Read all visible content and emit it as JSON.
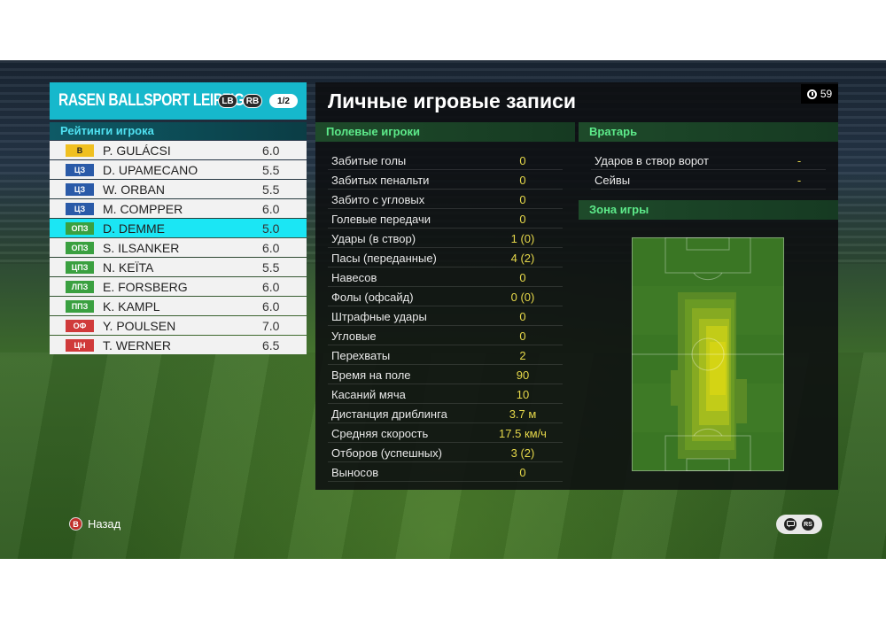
{
  "team": {
    "name": "RASEN BALLSPORT LEIPZIG",
    "lb_label": "LB",
    "rb_label": "RB",
    "page": "1/2"
  },
  "ratings_title": "Рейтинги игрока",
  "players": [
    {
      "pos": "В",
      "name": "P. GULÁCSI",
      "rating": "6.0",
      "pos_bg": "#f0c020",
      "pos_fg": "#222222"
    },
    {
      "pos": "ЦЗ",
      "name": "D. UPAMECANO",
      "rating": "5.5",
      "pos_bg": "#2a5aa8",
      "pos_fg": "#ffffff"
    },
    {
      "pos": "ЦЗ",
      "name": "W. ORBAN",
      "rating": "5.5",
      "pos_bg": "#2a5aa8",
      "pos_fg": "#ffffff"
    },
    {
      "pos": "ЦЗ",
      "name": "M. COMPPER",
      "rating": "6.0",
      "pos_bg": "#2a5aa8",
      "pos_fg": "#ffffff"
    },
    {
      "pos": "ОПЗ",
      "name": "D. DEMME",
      "rating": "5.0",
      "pos_bg": "#3aa040",
      "pos_fg": "#ffffff"
    },
    {
      "pos": "ОПЗ",
      "name": "S. ILSANKER",
      "rating": "6.0",
      "pos_bg": "#3aa040",
      "pos_fg": "#ffffff"
    },
    {
      "pos": "ЦПЗ",
      "name": "N. KEÏTA",
      "rating": "5.5",
      "pos_bg": "#3aa040",
      "pos_fg": "#ffffff"
    },
    {
      "pos": "ЛПЗ",
      "name": "E. FORSBERG",
      "rating": "6.0",
      "pos_bg": "#3aa040",
      "pos_fg": "#ffffff"
    },
    {
      "pos": "ППЗ",
      "name": "K. KAMPL",
      "rating": "6.0",
      "pos_bg": "#3aa040",
      "pos_fg": "#ffffff"
    },
    {
      "pos": "ОФ",
      "name": "Y. POULSEN",
      "rating": "7.0",
      "pos_bg": "#d03a3a",
      "pos_fg": "#ffffff"
    },
    {
      "pos": "ЦН",
      "name": "T. WERNER",
      "rating": "6.5",
      "pos_bg": "#d03a3a",
      "pos_fg": "#ffffff"
    }
  ],
  "selected_player_index": 4,
  "main": {
    "title": "Личные игровые записи",
    "timer": "59",
    "field_players_title": "Полевые игроки",
    "goalkeeper_title": "Вратарь",
    "zone_title": "Зона игры"
  },
  "field_stats": [
    {
      "label": "Забитые голы",
      "value": "0"
    },
    {
      "label": "Забитых пенальти",
      "value": "0"
    },
    {
      "label": "Забито с угловых",
      "value": "0"
    },
    {
      "label": "Голевые передачи",
      "value": "0"
    },
    {
      "label": "Удары (в створ)",
      "value": "1 (0)"
    },
    {
      "label": "Пасы (переданные)",
      "value": "4 (2)"
    },
    {
      "label": "Навесов",
      "value": "0"
    },
    {
      "label": "Фолы (офсайд)",
      "value": "0 (0)"
    },
    {
      "label": "Штрафные удары",
      "value": "0"
    },
    {
      "label": "Угловые",
      "value": "0"
    },
    {
      "label": "Перехваты",
      "value": "2"
    },
    {
      "label": "Время на поле",
      "value": "90"
    },
    {
      "label": "Касаний мяча",
      "value": "10"
    },
    {
      "label": "Дистанция дриблинга",
      "value": "3.7 м"
    },
    {
      "label": "Средняя скорость",
      "value": "17.5 км/ч"
    },
    {
      "label": "Отборов (успешных)",
      "value": "3 (2)"
    },
    {
      "label": "Выносов",
      "value": "0"
    }
  ],
  "gk_stats": [
    {
      "label": "Ударов в створ ворот",
      "value": "-"
    },
    {
      "label": "Сейвы",
      "value": "-"
    }
  ],
  "footer": {
    "back_key": "B",
    "back_label": "Назад",
    "right_icon_1": "chat-icon",
    "right_icon_2": "rs-icon",
    "rs_label": "RS"
  },
  "colors": {
    "accent": "#16b8cc",
    "selected_row": "#1be6f4",
    "stat_value": "#e6d84a",
    "section_title": "#5dea8a"
  }
}
